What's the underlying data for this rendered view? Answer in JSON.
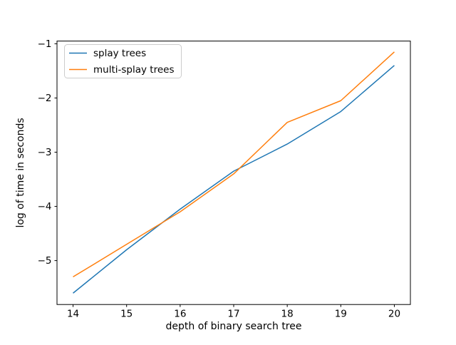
{
  "chart_data": {
    "type": "line",
    "title": "",
    "xlabel": "depth of binary search tree",
    "ylabel": "log of time in seconds",
    "x": [
      14,
      15,
      16,
      17,
      18,
      19,
      20
    ],
    "series": [
      {
        "name": "splay trees",
        "color": "#1f77b4",
        "values": [
          -5.6,
          -4.8,
          -4.05,
          -3.35,
          -2.85,
          -2.25,
          -1.4
        ]
      },
      {
        "name": "multi-splay trees",
        "color": "#ff7f0e",
        "values": [
          -5.3,
          -4.7,
          -4.1,
          -3.4,
          -2.45,
          -2.05,
          -1.15
        ]
      }
    ],
    "xlim": [
      13.7,
      20.3
    ],
    "ylim": [
      -5.81,
      -0.95
    ],
    "xticks": [
      14,
      15,
      16,
      17,
      18,
      19,
      20
    ],
    "yticks": [
      -5,
      -4,
      -3,
      -2,
      -1
    ],
    "grid": false,
    "legend_position": "upper left",
    "line_width": 1.5,
    "spine_color": "#000000",
    "legend_border_color": "#cccccc",
    "background_color": "#ffffff"
  }
}
